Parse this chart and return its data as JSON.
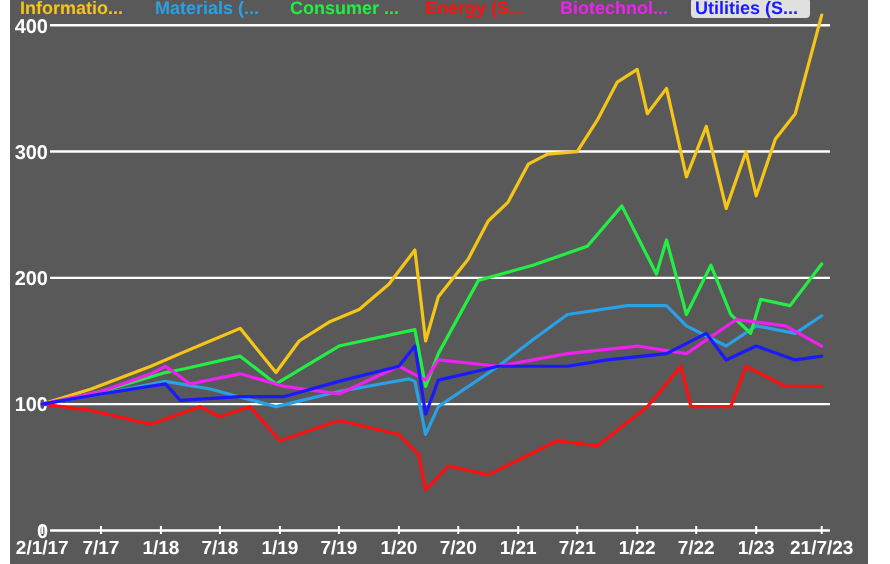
{
  "chart_data": {
    "type": "line",
    "xlim": [
      "2016-09-25",
      "2023-12-10"
    ],
    "xticks": [
      {
        "value": "2017-01-02",
        "label": "2/1/17"
      },
      {
        "value": "2017-07-01",
        "label": "7/17"
      },
      {
        "value": "2018-01-01",
        "label": "1/18"
      },
      {
        "value": "2018-07-01",
        "label": "7/18"
      },
      {
        "value": "2019-01-01",
        "label": "1/19"
      },
      {
        "value": "2019-07-01",
        "label": "7/19"
      },
      {
        "value": "2020-01-01",
        "label": "1/20"
      },
      {
        "value": "2020-07-01",
        "label": "7/20"
      },
      {
        "value": "2021-01-01",
        "label": "1/21"
      },
      {
        "value": "2021-07-01",
        "label": "7/21"
      },
      {
        "value": "2022-01-01",
        "label": "1/22"
      },
      {
        "value": "2022-07-01",
        "label": "7/22"
      },
      {
        "value": "2023-01-01",
        "label": "1/23"
      },
      {
        "value": "2023-07-21",
        "label": "21/7/23"
      }
    ],
    "ylim": [
      -25,
      420
    ],
    "yticks": [
      0,
      100,
      200,
      300,
      400
    ],
    "grid": "y",
    "legend": "top",
    "series": [
      {
        "name": "Informatio...",
        "color": "#f5c518",
        "x": [
          "2017-01-02",
          "2017-06-01",
          "2017-12-01",
          "2018-03-01",
          "2018-06-01",
          "2018-09-01",
          "2018-12-20",
          "2019-03-01",
          "2019-06-01",
          "2019-09-01",
          "2019-12-01",
          "2020-02-19",
          "2020-03-23",
          "2020-05-01",
          "2020-08-01",
          "2020-10-01",
          "2020-12-01",
          "2021-02-01",
          "2021-04-01",
          "2021-07-01",
          "2021-09-01",
          "2021-11-01",
          "2022-01-01",
          "2022-02-01",
          "2022-04-01",
          "2022-06-01",
          "2022-08-01",
          "2022-10-01",
          "2022-12-01",
          "2023-01-01",
          "2023-03-01",
          "2023-05-01",
          "2023-07-21"
        ],
        "values": [
          100,
          112,
          130,
          140,
          150,
          160,
          125,
          150,
          165,
          175,
          195,
          222,
          150,
          185,
          215,
          245,
          260,
          290,
          298,
          300,
          325,
          355,
          365,
          330,
          350,
          280,
          320,
          255,
          300,
          265,
          310,
          330,
          408
        ]
      },
      {
        "name": "Materials (...",
        "color": "#2aa0e6",
        "x": [
          "2017-01-02",
          "2017-07-01",
          "2018-01-15",
          "2018-06-01",
          "2018-12-20",
          "2019-07-01",
          "2020-02-01",
          "2020-02-19",
          "2020-03-23",
          "2020-05-01",
          "2020-11-01",
          "2021-02-15",
          "2021-06-01",
          "2021-12-01",
          "2022-04-01",
          "2022-06-01",
          "2022-10-01",
          "2023-01-01",
          "2023-05-01",
          "2023-07-21"
        ],
        "values": [
          100,
          108,
          118,
          112,
          98,
          110,
          120,
          118,
          76,
          98,
          130,
          151,
          171,
          178,
          178,
          162,
          146,
          162,
          156,
          170
        ]
      },
      {
        "name": "Consumer ...",
        "color": "#22ee44",
        "x": [
          "2017-01-02",
          "2017-07-01",
          "2018-01-15",
          "2018-03-15",
          "2018-09-01",
          "2018-12-20",
          "2019-07-01",
          "2020-02-19",
          "2020-03-23",
          "2020-05-01",
          "2020-09-01",
          "2021-02-15",
          "2021-08-01",
          "2021-11-15",
          "2022-03-01",
          "2022-04-01",
          "2022-06-01",
          "2022-08-15",
          "2022-10-15",
          "2022-12-15",
          "2023-01-15",
          "2023-04-15",
          "2023-07-21"
        ],
        "values": [
          100,
          110,
          125,
          128,
          138,
          116,
          146,
          159,
          114,
          140,
          198,
          210,
          225,
          257,
          203,
          230,
          171,
          210,
          171,
          156,
          183,
          178,
          211
        ]
      },
      {
        "name": "Energy (S...",
        "color": "#ff1010",
        "x": [
          "2017-01-02",
          "2017-06-01",
          "2017-12-01",
          "2018-05-01",
          "2018-07-01",
          "2018-10-01",
          "2019-01-01",
          "2019-07-01",
          "2020-01-01",
          "2020-03-01",
          "2020-03-23",
          "2020-06-01",
          "2020-10-01",
          "2021-05-01",
          "2021-09-01",
          "2022-02-01",
          "2022-05-15",
          "2022-06-15",
          "2022-10-15",
          "2022-12-01",
          "2023-04-01",
          "2023-07-21"
        ],
        "values": [
          100,
          95,
          84,
          98,
          90,
          98,
          71,
          87,
          76,
          60,
          32,
          51,
          44,
          71,
          67,
          98,
          130,
          98,
          98,
          130,
          114,
          114
        ]
      },
      {
        "name": "Biotechnol...",
        "color": "#ee22ee",
        "x": [
          "2017-01-02",
          "2017-07-01",
          "2017-12-01",
          "2018-01-15",
          "2018-04-01",
          "2018-09-01",
          "2019-01-15",
          "2019-07-01",
          "2020-01-01",
          "2020-03-23",
          "2020-05-01",
          "2020-11-01",
          "2021-06-01",
          "2022-01-01",
          "2022-06-01",
          "2022-11-01",
          "2023-04-01",
          "2023-07-21"
        ],
        "values": [
          100,
          110,
          124,
          130,
          116,
          124,
          114,
          108,
          130,
          119,
          135,
          130,
          140,
          146,
          140,
          167,
          162,
          146
        ]
      },
      {
        "name": "Utilities (S...",
        "color": "#1a1aff",
        "x": [
          "2017-01-02",
          "2017-07-01",
          "2018-01-15",
          "2018-03-01",
          "2018-09-01",
          "2019-01-15",
          "2019-07-01",
          "2020-01-01",
          "2020-02-19",
          "2020-03-23",
          "2020-05-01",
          "2020-11-01",
          "2021-06-01",
          "2021-10-01",
          "2022-04-01",
          "2022-08-01",
          "2022-10-01",
          "2023-01-01",
          "2023-05-01",
          "2023-07-21"
        ],
        "values": [
          100,
          108,
          116,
          103,
          106,
          106,
          118,
          130,
          146,
          92,
          119,
          130,
          130,
          135,
          140,
          156,
          135,
          146,
          135,
          138
        ]
      }
    ]
  }
}
